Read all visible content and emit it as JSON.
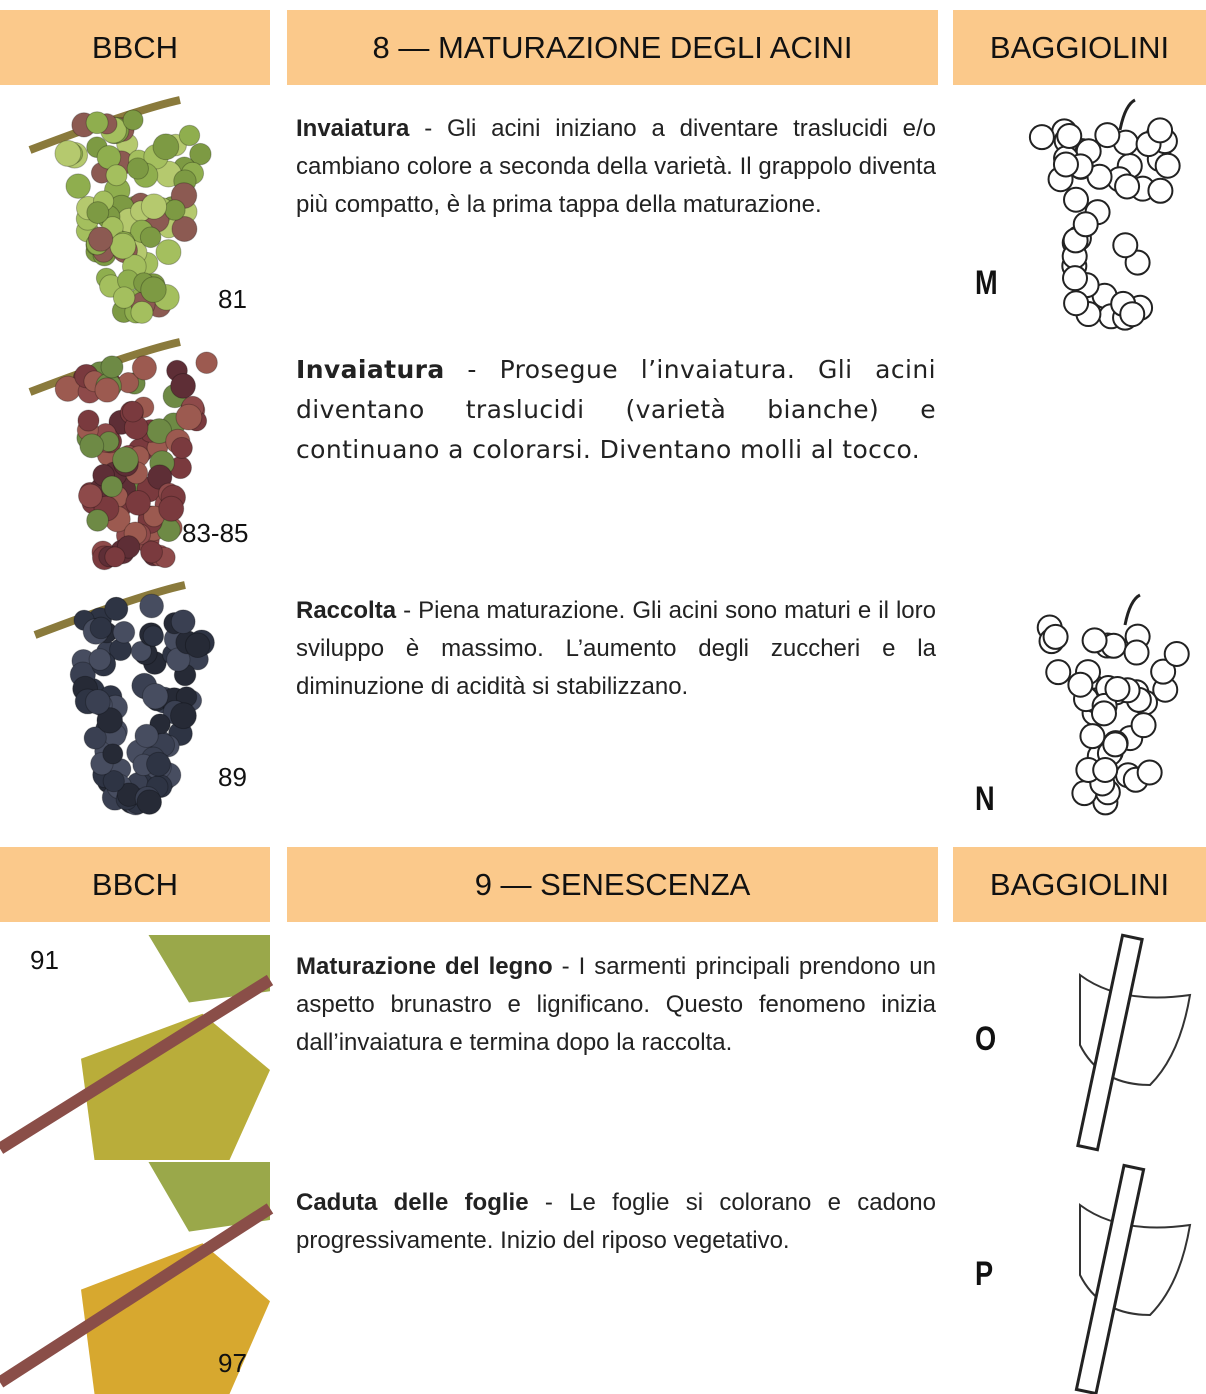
{
  "sections": [
    {
      "header": {
        "left": "BBCH",
        "title": "8 — MATURAZIONE DEGLI ACINI",
        "right": "BAGGIOLINI"
      },
      "rows": [
        {
          "code": "81",
          "term": "Invaiatura",
          "text": " - Gli acini iniziano a diventare traslucidi e/o cambiano colore a seconda della varietà. Il grappolo diventa più compatto, è la prima tappa della maturazione.",
          "stage": "M"
        },
        {
          "code": "83-85",
          "term": "Invaiatura",
          "text": " - Prosegue l’invaiatura. Gli acini diventano traslucidi (varietà bianche) e continuano a colorarsi. Diventano molli al tocco."
        },
        {
          "code": "89",
          "term": "Raccolta",
          "text": " - Piena maturazione.  Gli acini sono maturi e il loro sviluppo è massimo. L’aumento degli zuccheri e la diminuzione di acidità si stabilizzano.",
          "stage": "N"
        }
      ]
    },
    {
      "header": {
        "left": "BBCH",
        "title": "9 — SENESCENZA",
        "right": "BAGGIOLINI"
      },
      "rows": [
        {
          "code": "91",
          "term": "Maturazione del legno",
          "text": " - I sarmenti principali prendono un aspetto brunastro e lignificano. Questo fenomeno inizia dall’invaiatura e termina dopo la raccolta.",
          "stage": "O"
        },
        {
          "code": "97",
          "term": "Caduta delle foglie",
          "text": " - Le foglie si colorano e cadono progressivamente.  Inizio del riposo vegetativo.",
          "stage": "P"
        }
      ]
    }
  ]
}
